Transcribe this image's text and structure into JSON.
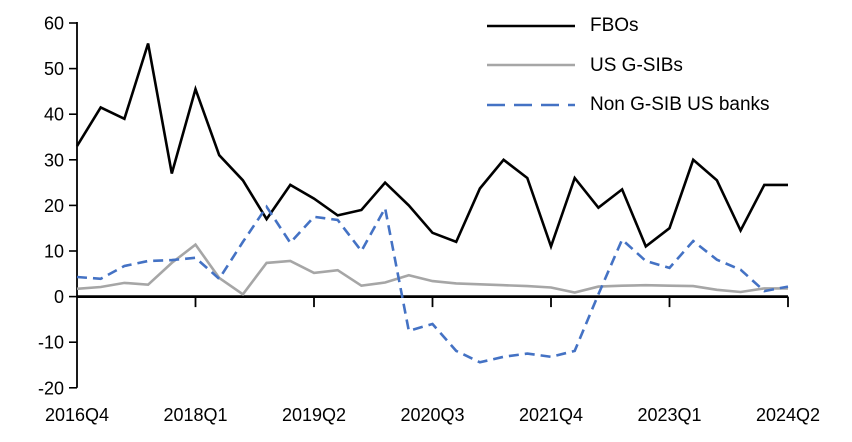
{
  "chart_data": {
    "type": "line",
    "title": "",
    "xlabel": "",
    "ylabel": "",
    "grid": "off",
    "legend_position": "top-right",
    "ylim": [
      -20,
      60
    ],
    "ytick_step": 10,
    "y_tick_labels": [
      "60",
      "50",
      "40",
      "30",
      "20",
      "10",
      "0",
      "-10",
      "-20"
    ],
    "x_tick_labels": [
      "2016Q4",
      "2018Q1",
      "2019Q2",
      "2020Q3",
      "2021Q4",
      "2023Q1",
      "2024Q2"
    ],
    "x_tick_indices": [
      0,
      5,
      10,
      15,
      20,
      25,
      30
    ],
    "x_categories": [
      "2016Q4",
      "2017Q1",
      "2017Q2",
      "2017Q3",
      "2017Q4",
      "2018Q1",
      "2018Q2",
      "2018Q3",
      "2018Q4",
      "2019Q1",
      "2019Q2",
      "2019Q3",
      "2019Q4",
      "2020Q1",
      "2020Q2",
      "2020Q3",
      "2020Q4",
      "2021Q1",
      "2021Q2",
      "2021Q3",
      "2021Q4",
      "2022Q1",
      "2022Q2",
      "2022Q3",
      "2022Q4",
      "2023Q1",
      "2023Q2",
      "2023Q3",
      "2023Q4",
      "2024Q1",
      "2024Q2"
    ],
    "series": [
      {
        "name": "FBOs",
        "color": "#000000",
        "style": "solid",
        "values": [
          33,
          41.5,
          39,
          55.5,
          27,
          45.5,
          31,
          25.5,
          17,
          24.5,
          21.5,
          17.8,
          19,
          25,
          20,
          14,
          12,
          23.7,
          30,
          26,
          11,
          26,
          19.5,
          23.5,
          11,
          15,
          30,
          25.5,
          14.5,
          24.5,
          24.5
        ]
      },
      {
        "name": "US G-SIBs",
        "color": "#A6A6A6",
        "style": "solid",
        "values": [
          1.7,
          2.1,
          3,
          2.6,
          7.4,
          11.4,
          4.1,
          0.5,
          7.4,
          7.8,
          5.2,
          5.8,
          2.4,
          3.1,
          4.7,
          3.4,
          2.9,
          2.7,
          2.5,
          2.3,
          2,
          0.9,
          2.2,
          2.4,
          2.5,
          2.4,
          2.3,
          1.5,
          1,
          1.8,
          1.8
        ]
      },
      {
        "name": "Non G-SIB US banks",
        "color": "#4472C4",
        "style": "dashed",
        "values": [
          4.3,
          3.9,
          6.7,
          7.8,
          8,
          8.5,
          3.9,
          12,
          19.7,
          11.8,
          17.5,
          16.8,
          10,
          19.4,
          -7.5,
          -6,
          -11.9,
          -14.4,
          -13.2,
          -12.5,
          -13.2,
          -11.9,
          0.5,
          12.5,
          7.8,
          6.3,
          12.2,
          8.1,
          5.9,
          1.2,
          2.2
        ]
      }
    ]
  }
}
